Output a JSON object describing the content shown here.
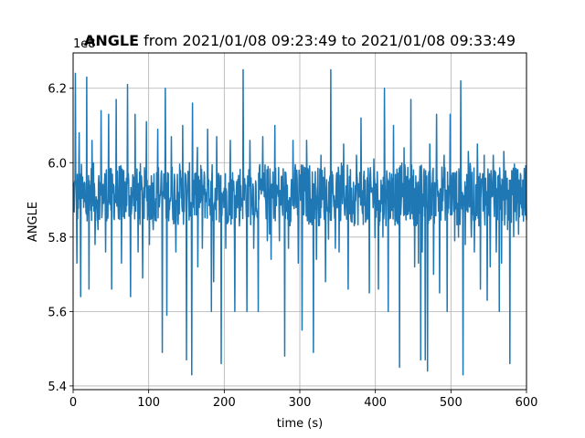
{
  "chart_data": {
    "type": "line",
    "title_bold": "ANGLE",
    "title_rest": " from 2021/01/08 09:23:49 to 2021/01/08 09:33:49",
    "xlabel": "time (s)",
    "ylabel": "ANGLE",
    "offset_text": "1e8",
    "xlim": [
      0,
      600
    ],
    "ylim": [
      5.39,
      6.295
    ],
    "xticks": [
      0,
      100,
      200,
      300,
      400,
      500,
      600
    ],
    "yticks": [
      5.4,
      5.6,
      5.8,
      6.0,
      6.2
    ],
    "ytick_labels": [
      "5.4",
      "5.6",
      "5.8",
      "6.0",
      "6.2"
    ],
    "grid": true,
    "series": [
      {
        "color": "#1f77b4",
        "baseline": 5.92,
        "band_low": 5.83,
        "band_high": 6.0,
        "n_samples": 1200,
        "spikes": [
          {
            "x": 3,
            "y": 6.24
          },
          {
            "x": 5,
            "y": 5.73
          },
          {
            "x": 8,
            "y": 6.08
          },
          {
            "x": 10,
            "y": 5.64
          },
          {
            "x": 14,
            "y": 5.88
          },
          {
            "x": 18,
            "y": 6.23
          },
          {
            "x": 21,
            "y": 5.66
          },
          {
            "x": 25,
            "y": 6.06
          },
          {
            "x": 29,
            "y": 5.78
          },
          {
            "x": 33,
            "y": 5.82
          },
          {
            "x": 37,
            "y": 6.14
          },
          {
            "x": 43,
            "y": 5.76
          },
          {
            "x": 47,
            "y": 6.13
          },
          {
            "x": 51,
            "y": 5.66
          },
          {
            "x": 57,
            "y": 6.17
          },
          {
            "x": 60,
            "y": 5.85
          },
          {
            "x": 64,
            "y": 5.73
          },
          {
            "x": 68,
            "y": 5.85
          },
          {
            "x": 72,
            "y": 6.21
          },
          {
            "x": 76,
            "y": 5.64
          },
          {
            "x": 82,
            "y": 6.13
          },
          {
            "x": 86,
            "y": 5.76
          },
          {
            "x": 92,
            "y": 5.69
          },
          {
            "x": 97,
            "y": 6.11
          },
          {
            "x": 101,
            "y": 5.78
          },
          {
            "x": 106,
            "y": 5.82
          },
          {
            "x": 112,
            "y": 6.09
          },
          {
            "x": 118,
            "y": 5.49
          },
          {
            "x": 122,
            "y": 6.2
          },
          {
            "x": 124,
            "y": 5.59
          },
          {
            "x": 130,
            "y": 6.07
          },
          {
            "x": 136,
            "y": 5.76
          },
          {
            "x": 140,
            "y": 5.92
          },
          {
            "x": 145,
            "y": 6.1
          },
          {
            "x": 150,
            "y": 5.47
          },
          {
            "x": 157,
            "y": 5.43
          },
          {
            "x": 158,
            "y": 6.16
          },
          {
            "x": 165,
            "y": 5.72
          },
          {
            "x": 171,
            "y": 5.77
          },
          {
            "x": 178,
            "y": 6.09
          },
          {
            "x": 183,
            "y": 5.6
          },
          {
            "x": 186,
            "y": 5.68
          },
          {
            "x": 190,
            "y": 6.07
          },
          {
            "x": 196,
            "y": 5.46
          },
          {
            "x": 202,
            "y": 5.77
          },
          {
            "x": 208,
            "y": 6.06
          },
          {
            "x": 214,
            "y": 5.6
          },
          {
            "x": 220,
            "y": 5.83
          },
          {
            "x": 225,
            "y": 6.25
          },
          {
            "x": 230,
            "y": 5.6
          },
          {
            "x": 234,
            "y": 6.06
          },
          {
            "x": 239,
            "y": 5.77
          },
          {
            "x": 245,
            "y": 5.6
          },
          {
            "x": 251,
            "y": 6.07
          },
          {
            "x": 257,
            "y": 5.79
          },
          {
            "x": 262,
            "y": 5.74
          },
          {
            "x": 267,
            "y": 6.1
          },
          {
            "x": 273,
            "y": 5.79
          },
          {
            "x": 280,
            "y": 5.48
          },
          {
            "x": 285,
            "y": 5.77
          },
          {
            "x": 291,
            "y": 6.06
          },
          {
            "x": 298,
            "y": 5.73
          },
          {
            "x": 303,
            "y": 5.55
          },
          {
            "x": 309,
            "y": 6.06
          },
          {
            "x": 318,
            "y": 5.49
          },
          {
            "x": 322,
            "y": 5.74
          },
          {
            "x": 328,
            "y": 6.02
          },
          {
            "x": 334,
            "y": 5.68
          },
          {
            "x": 341,
            "y": 6.25
          },
          {
            "x": 347,
            "y": 5.77
          },
          {
            "x": 352,
            "y": 5.76
          },
          {
            "x": 358,
            "y": 6.05
          },
          {
            "x": 364,
            "y": 5.66
          },
          {
            "x": 369,
            "y": 5.84
          },
          {
            "x": 375,
            "y": 6.02
          },
          {
            "x": 381,
            "y": 6.12
          },
          {
            "x": 387,
            "y": 5.84
          },
          {
            "x": 392,
            "y": 5.65
          },
          {
            "x": 398,
            "y": 6.01
          },
          {
            "x": 404,
            "y": 5.66
          },
          {
            "x": 410,
            "y": 5.8
          },
          {
            "x": 412,
            "y": 6.2
          },
          {
            "x": 417,
            "y": 5.6
          },
          {
            "x": 424,
            "y": 6.1
          },
          {
            "x": 430,
            "y": 5.84
          },
          {
            "x": 432,
            "y": 5.45
          },
          {
            "x": 438,
            "y": 6.04
          },
          {
            "x": 442,
            "y": 5.86
          },
          {
            "x": 447,
            "y": 6.17
          },
          {
            "x": 452,
            "y": 5.72
          },
          {
            "x": 457,
            "y": 5.73
          },
          {
            "x": 460,
            "y": 5.47
          },
          {
            "x": 462,
            "y": 5.76
          },
          {
            "x": 466,
            "y": 5.47
          },
          {
            "x": 469,
            "y": 5.44
          },
          {
            "x": 472,
            "y": 6.05
          },
          {
            "x": 477,
            "y": 5.7
          },
          {
            "x": 481,
            "y": 6.13
          },
          {
            "x": 485,
            "y": 5.65
          },
          {
            "x": 491,
            "y": 6.02
          },
          {
            "x": 495,
            "y": 5.6
          },
          {
            "x": 499,
            "y": 6.13
          },
          {
            "x": 505,
            "y": 5.79
          },
          {
            "x": 510,
            "y": 5.8
          },
          {
            "x": 513,
            "y": 6.22
          },
          {
            "x": 516,
            "y": 5.43
          },
          {
            "x": 519,
            "y": 5.78
          },
          {
            "x": 523,
            "y": 6.03
          },
          {
            "x": 527,
            "y": 5.8
          },
          {
            "x": 531,
            "y": 5.76
          },
          {
            "x": 535,
            "y": 6.05
          },
          {
            "x": 539,
            "y": 5.66
          },
          {
            "x": 544,
            "y": 6.02
          },
          {
            "x": 548,
            "y": 5.63
          },
          {
            "x": 552,
            "y": 5.72
          },
          {
            "x": 556,
            "y": 6.02
          },
          {
            "x": 560,
            "y": 5.76
          },
          {
            "x": 564,
            "y": 5.6
          },
          {
            "x": 567,
            "y": 5.73
          },
          {
            "x": 570,
            "y": 6.03
          },
          {
            "x": 574,
            "y": 5.93
          },
          {
            "x": 575,
            "y": 5.82
          },
          {
            "x": 578,
            "y": 5.46
          }
        ]
      }
    ]
  }
}
